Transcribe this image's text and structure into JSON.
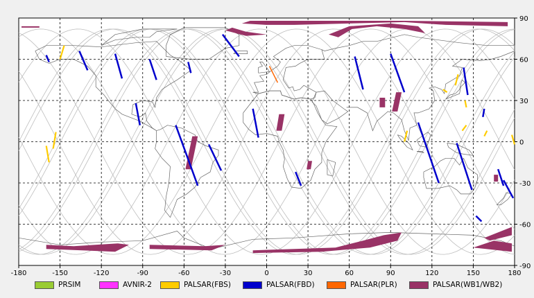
{
  "map": {
    "x_ticks": [
      "-180",
      "-150",
      "-120",
      "-90",
      "-60",
      "-30",
      "0",
      "30",
      "60",
      "90",
      "120",
      "150",
      "180"
    ],
    "y_ticks": [
      "90",
      "60",
      "30",
      "0",
      "-30",
      "-60",
      "-90"
    ],
    "background_color": "#ffffff",
    "grid_color": "#000000",
    "orbit_color": "#bdbdbd",
    "coast_color": "#666666"
  },
  "legend": [
    {
      "label": "PRSIM",
      "color": "#99cc33"
    },
    {
      "label": "AVNIR-2",
      "color": "#ff33ff"
    },
    {
      "label": "PALSAR(FBS)",
      "color": "#ffcc00"
    },
    {
      "label": "PALSAR(FBD)",
      "color": "#0000cc"
    },
    {
      "label": "PALSAR(PLR)",
      "color": "#ff6600"
    },
    {
      "label": "PALSAR(WB1/WB2)",
      "color": "#993366"
    }
  ]
}
